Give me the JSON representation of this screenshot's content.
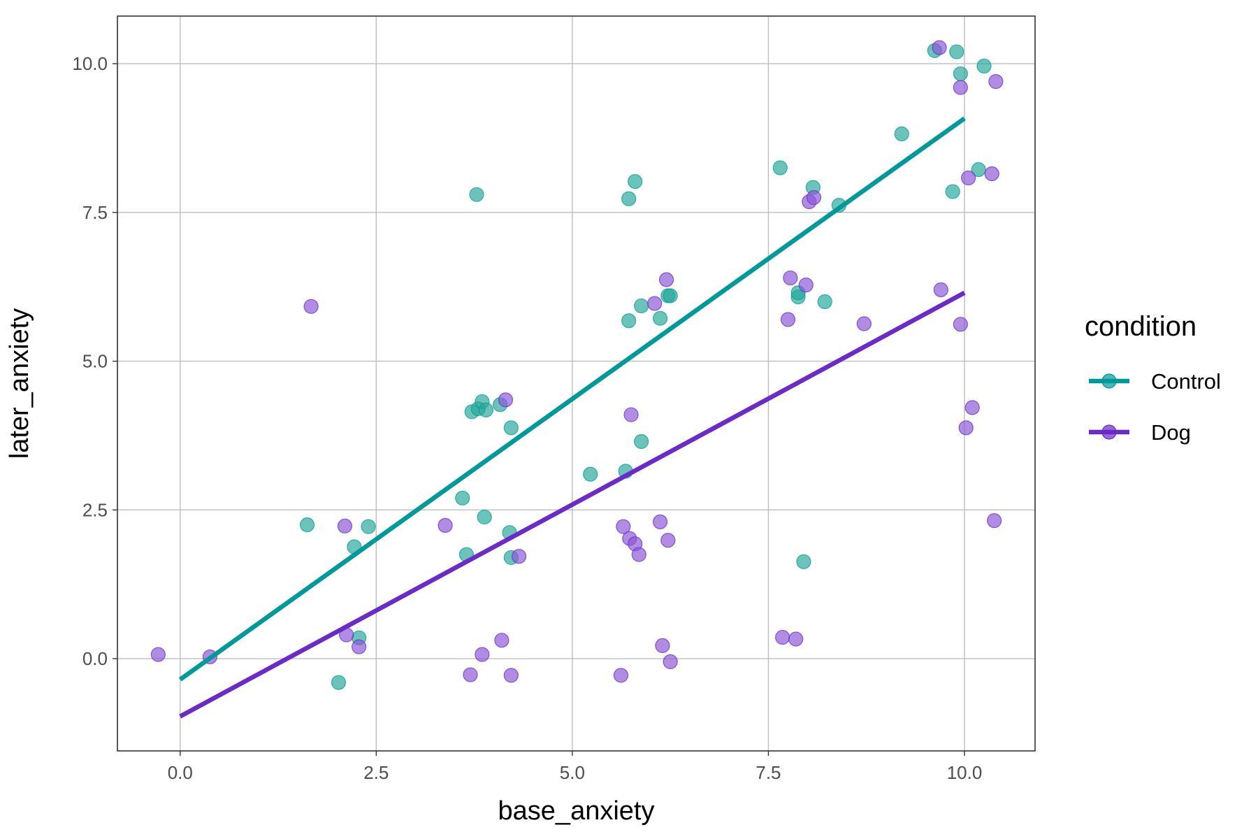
{
  "chart_data": {
    "type": "scatter",
    "xlabel": "base_anxiety",
    "ylabel": "later_anxiety",
    "xlim": [
      -0.8,
      10.9
    ],
    "ylim": [
      -1.55,
      10.8
    ],
    "x_ticks": [
      0.0,
      2.5,
      5.0,
      7.5,
      10.0
    ],
    "x_tick_labels": [
      "0.0",
      "2.5",
      "5.0",
      "7.5",
      "10.0"
    ],
    "y_ticks": [
      0.0,
      2.5,
      5.0,
      7.5,
      10.0
    ],
    "y_tick_labels": [
      "0.0",
      "2.5",
      "5.0",
      "7.5",
      "10.0"
    ],
    "grid": true,
    "legend": {
      "title": "condition",
      "placement": "right",
      "entries": [
        {
          "label": "Control",
          "color": "#009999"
        },
        {
          "label": "Dog",
          "color": "#6a2bc8"
        }
      ]
    },
    "series": [
      {
        "name": "Control",
        "color": "#009999",
        "point_fill": "#26a69a",
        "points": [
          [
            1.62,
            2.25
          ],
          [
            2.22,
            1.88
          ],
          [
            2.4,
            2.22
          ],
          [
            2.28,
            0.35
          ],
          [
            2.02,
            -0.4
          ],
          [
            3.6,
            2.7
          ],
          [
            3.65,
            1.75
          ],
          [
            3.88,
            2.38
          ],
          [
            3.72,
            4.15
          ],
          [
            3.8,
            4.2
          ],
          [
            3.85,
            4.32
          ],
          [
            3.9,
            4.18
          ],
          [
            4.08,
            4.27
          ],
          [
            4.22,
            3.88
          ],
          [
            4.2,
            2.12
          ],
          [
            4.22,
            1.7
          ],
          [
            3.78,
            7.8
          ],
          [
            5.23,
            3.1
          ],
          [
            5.68,
            3.15
          ],
          [
            5.72,
            5.68
          ],
          [
            5.72,
            7.73
          ],
          [
            5.8,
            8.02
          ],
          [
            5.88,
            5.93
          ],
          [
            5.88,
            3.65
          ],
          [
            6.12,
            5.72
          ],
          [
            6.22,
            6.1
          ],
          [
            6.25,
            6.1
          ],
          [
            7.65,
            8.25
          ],
          [
            7.88,
            6.08
          ],
          [
            7.88,
            6.15
          ],
          [
            7.95,
            1.63
          ],
          [
            8.07,
            7.92
          ],
          [
            8.22,
            6.0
          ],
          [
            8.4,
            7.62
          ],
          [
            9.2,
            8.82
          ],
          [
            9.62,
            10.22
          ],
          [
            9.85,
            7.85
          ],
          [
            9.9,
            10.2
          ],
          [
            9.95,
            9.83
          ],
          [
            10.18,
            8.22
          ],
          [
            10.25,
            9.96
          ]
        ],
        "fit": {
          "x": [
            0.0,
            10.0
          ],
          "y": [
            -0.35,
            9.08
          ]
        }
      },
      {
        "name": "Dog",
        "color": "#6a2bc8",
        "point_fill": "#8a55d6",
        "points": [
          [
            -0.28,
            0.07
          ],
          [
            0.38,
            0.03
          ],
          [
            1.67,
            5.92
          ],
          [
            2.1,
            2.23
          ],
          [
            2.12,
            0.4
          ],
          [
            2.28,
            0.2
          ],
          [
            3.38,
            2.24
          ],
          [
            3.7,
            -0.27
          ],
          [
            3.85,
            0.07
          ],
          [
            4.1,
            0.31
          ],
          [
            4.15,
            4.35
          ],
          [
            4.22,
            -0.28
          ],
          [
            4.32,
            1.72
          ],
          [
            5.62,
            -0.28
          ],
          [
            5.65,
            2.22
          ],
          [
            5.73,
            2.02
          ],
          [
            5.75,
            4.1
          ],
          [
            5.8,
            1.93
          ],
          [
            5.85,
            1.75
          ],
          [
            6.05,
            5.97
          ],
          [
            6.12,
            2.3
          ],
          [
            6.15,
            0.22
          ],
          [
            6.2,
            6.37
          ],
          [
            6.22,
            1.99
          ],
          [
            6.25,
            -0.05
          ],
          [
            7.68,
            0.36
          ],
          [
            7.75,
            5.7
          ],
          [
            7.78,
            6.4
          ],
          [
            7.85,
            0.33
          ],
          [
            7.98,
            6.28
          ],
          [
            8.02,
            7.68
          ],
          [
            8.08,
            7.75
          ],
          [
            8.72,
            5.63
          ],
          [
            9.68,
            10.27
          ],
          [
            9.7,
            6.2
          ],
          [
            9.95,
            9.6
          ],
          [
            9.95,
            5.62
          ],
          [
            10.02,
            3.88
          ],
          [
            10.05,
            8.08
          ],
          [
            10.1,
            4.22
          ],
          [
            10.35,
            8.15
          ],
          [
            10.38,
            2.32
          ],
          [
            10.4,
            9.7
          ]
        ],
        "fit": {
          "x": [
            0.0,
            10.0
          ],
          "y": [
            -0.97,
            6.15
          ]
        }
      }
    ]
  }
}
